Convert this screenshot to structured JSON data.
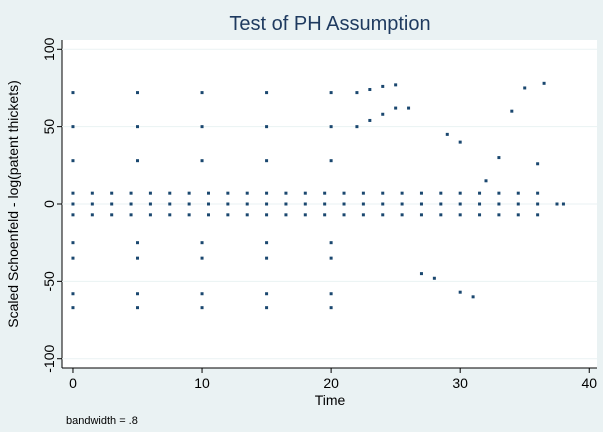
{
  "chart_data": {
    "type": "scatter",
    "title": "Test of PH Assumption",
    "x_label": "Time",
    "y_label": "Scaled Schoenfeld - log(patent thickets)",
    "note": "bandwidth = .8",
    "xlim": [
      -0.85,
      40.6
    ],
    "ylim": [
      -106,
      106
    ],
    "xticks": [
      0,
      10,
      20,
      30,
      40
    ],
    "yticks": [
      -100,
      -50,
      0,
      50,
      100
    ],
    "grid": true,
    "series": [
      {
        "color": "#1a476f",
        "x": [
          0,
          1.5,
          3,
          4.5,
          6,
          7.5,
          9,
          10.5,
          12,
          13.5,
          15,
          16.5,
          18,
          19.5,
          21,
          22.5,
          24,
          25.5,
          27,
          28.5,
          30,
          31.5,
          33,
          34.5,
          36,
          0,
          1.5,
          3,
          4.5,
          6,
          7.5,
          9,
          10.5,
          12,
          13.5,
          15,
          16.5,
          18,
          19.5,
          21,
          22.5,
          24,
          25.5,
          27,
          28.5,
          30,
          31.5,
          33,
          34.5,
          36,
          0,
          1.5,
          3,
          4.5,
          6,
          7.5,
          9,
          10.5,
          12,
          13.5,
          15,
          16.5,
          18,
          19.5,
          21,
          22.5,
          24,
          25.5,
          27,
          28.5,
          30,
          31.5,
          33,
          34.5,
          36,
          0,
          5,
          10,
          15,
          20,
          0,
          5,
          10,
          15,
          20,
          0,
          5,
          10,
          15,
          20,
          0,
          5,
          10,
          15,
          20,
          0,
          5,
          10,
          15,
          20,
          0,
          5,
          10,
          15,
          20,
          0,
          5,
          10,
          15,
          20,
          22,
          23,
          24,
          25,
          22,
          23,
          24,
          25,
          26,
          29,
          30,
          31,
          30,
          27,
          28,
          36.5,
          35,
          34,
          33,
          32,
          36,
          37.5,
          38
        ],
        "y": [
          7,
          7,
          7,
          7,
          7,
          7,
          7,
          7,
          7,
          7,
          7,
          7,
          7,
          7,
          7,
          7,
          7,
          7,
          7,
          7,
          7,
          7,
          7,
          7,
          7,
          0,
          0,
          0,
          0,
          0,
          0,
          0,
          0,
          0,
          0,
          0,
          0,
          0,
          0,
          0,
          0,
          0,
          0,
          0,
          0,
          0,
          0,
          0,
          0,
          0,
          -7,
          -7,
          -7,
          -7,
          -7,
          -7,
          -7,
          -7,
          -7,
          -7,
          -7,
          -7,
          -7,
          -7,
          -7,
          -7,
          -7,
          -7,
          -7,
          -7,
          -7,
          -7,
          -7,
          -7,
          -7,
          72,
          72,
          72,
          72,
          72,
          50,
          50,
          50,
          50,
          50,
          28,
          28,
          28,
          28,
          28,
          -25,
          -25,
          -25,
          -25,
          -25,
          -35,
          -35,
          -35,
          -35,
          -35,
          -58,
          -58,
          -58,
          -58,
          -58,
          -67,
          -67,
          -67,
          -67,
          -67,
          72,
          74,
          76,
          77,
          50,
          54,
          58,
          62,
          62,
          45,
          40,
          -60,
          -57,
          -45,
          -48,
          78,
          75,
          60,
          30,
          15,
          26,
          0,
          0
        ]
      }
    ]
  }
}
